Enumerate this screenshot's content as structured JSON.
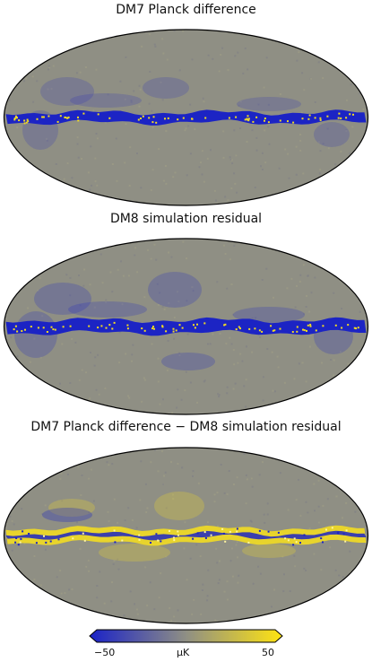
{
  "panels": [
    {
      "title": "DM7 Planck difference"
    },
    {
      "title": "DM8 simulation residual"
    },
    {
      "title": "DM7 Planck difference − DM8 simulation residual"
    }
  ],
  "colorbar": {
    "min_label": "−50",
    "max_label": "50",
    "unit": "μK",
    "min_value": -50,
    "max_value": 50,
    "colormap": "blue-gray-yellow",
    "colors": {
      "low": "#1a22c8",
      "mid": "#8f8f84",
      "high": "#ffe411"
    }
  },
  "colors": {
    "map_background": "#8f8f84",
    "map_outline": "#000000",
    "band_negative": "#1c24c4",
    "band_positive": "#f2dc22"
  }
}
